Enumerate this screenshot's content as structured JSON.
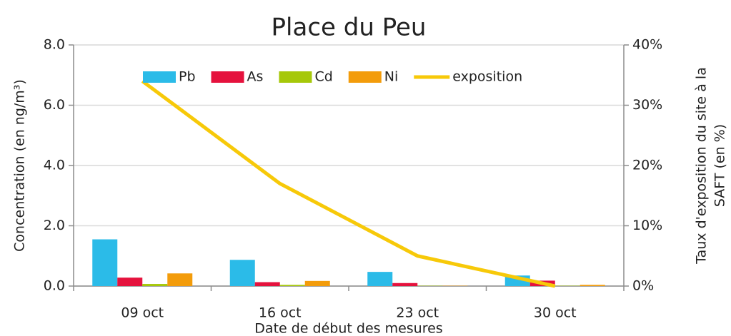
{
  "chart_data": {
    "type": "bar",
    "title": "Place du Peu",
    "xlabel": "Date de début des mesures",
    "ylabel": "Concentration (en ng/m³)",
    "y2label": [
      "Taux d'exposition du site à la",
      "SAFT (en %)"
    ],
    "categories": [
      "09 oct",
      "16 oct",
      "23 oct",
      "30 oct"
    ],
    "series": [
      {
        "name": "Pb",
        "type": "bar",
        "color": "#2bbbe8",
        "values": [
          1.55,
          0.87,
          0.47,
          0.35
        ]
      },
      {
        "name": "As",
        "type": "bar",
        "color": "#e5123d",
        "values": [
          0.28,
          0.13,
          0.1,
          0.18
        ]
      },
      {
        "name": "Cd",
        "type": "bar",
        "color": "#a6c80a",
        "values": [
          0.07,
          0.04,
          0.01,
          0.01
        ]
      },
      {
        "name": "Ni",
        "type": "bar",
        "color": "#f39c0b",
        "values": [
          0.42,
          0.17,
          0.01,
          0.04
        ]
      },
      {
        "name": "exposition",
        "type": "line",
        "axis": "y2",
        "color": "#f7c909",
        "values": [
          34,
          17,
          5,
          0
        ]
      }
    ],
    "ylim": [
      0,
      8
    ],
    "yticks": [
      {
        "value": 0,
        "label": "0.0"
      },
      {
        "value": 2,
        "label": "2.0"
      },
      {
        "value": 4,
        "label": "4.0"
      },
      {
        "value": 6,
        "label": "6.0"
      },
      {
        "value": 8,
        "label": "8.0"
      }
    ],
    "y2lim": [
      0,
      40
    ],
    "y2ticks": [
      {
        "value": 0,
        "label": "0%"
      },
      {
        "value": 10,
        "label": "10%"
      },
      {
        "value": 20,
        "label": "20%"
      },
      {
        "value": 30,
        "label": "30%"
      },
      {
        "value": 40,
        "label": "40%"
      }
    ],
    "grid": true,
    "legend": "top"
  }
}
